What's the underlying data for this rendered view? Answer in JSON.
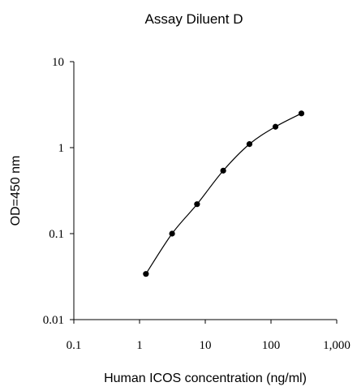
{
  "chart_data": {
    "type": "line",
    "title": "Assay Diluent D",
    "xlabel": "Human ICOS concentration (ng/ml)",
    "ylabel": "OD=450 nm",
    "x_scale": "log",
    "y_scale": "log",
    "xlim": [
      0.1,
      1000
    ],
    "ylim": [
      0.01,
      10
    ],
    "x_ticks": [
      0.1,
      1,
      10,
      100,
      1000
    ],
    "x_tick_labels": [
      "0.1",
      "1",
      "10",
      "100",
      "1,000"
    ],
    "y_ticks": [
      0.01,
      0.1,
      1,
      10
    ],
    "y_tick_labels": [
      "0.01",
      "0.1",
      "1",
      "10"
    ],
    "grid": false,
    "series": [
      {
        "x": [
          1.25,
          3.125,
          7.5,
          18.75,
          47,
          117,
          290
        ],
        "y": [
          0.034,
          0.1,
          0.22,
          0.54,
          1.1,
          1.75,
          2.5
        ],
        "color": "#000000",
        "marker": "circle"
      }
    ]
  }
}
